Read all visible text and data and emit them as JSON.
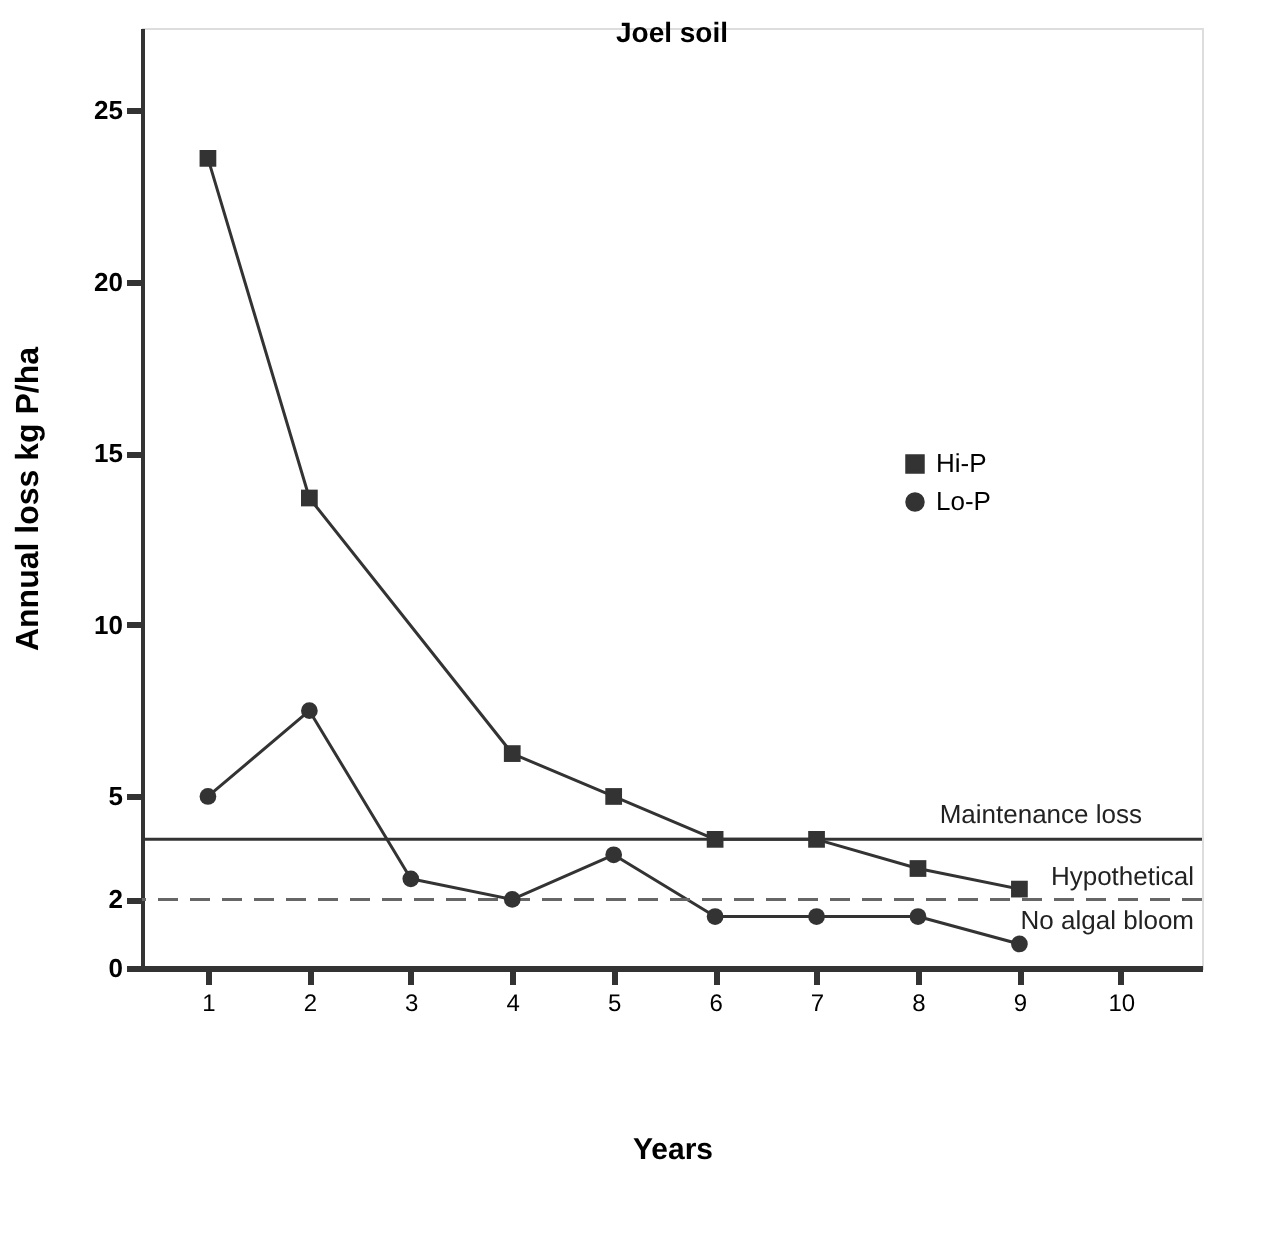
{
  "chart_data": {
    "type": "line",
    "title": "Joel soil",
    "xlabel": "Years",
    "ylabel": "Annual loss kg P/ha",
    "x": [
      1,
      2,
      3,
      4,
      5,
      6,
      7,
      8,
      9
    ],
    "series": [
      {
        "name": "Hi-P",
        "color": "#333333",
        "marker": "square",
        "values": [
          23.6,
          13.7,
          null,
          6.25,
          5.0,
          3.75,
          3.75,
          2.9,
          2.3
        ]
      },
      {
        "name": "Lo-P",
        "color": "#333333",
        "marker": "circle",
        "values": [
          5.0,
          7.5,
          2.6,
          2.0,
          3.3,
          1.5,
          1.5,
          1.5,
          0.7
        ]
      }
    ],
    "xlim": [
      0.35,
      10.8
    ],
    "xticks": [
      1,
      2,
      3,
      4,
      5,
      6,
      7,
      8,
      9,
      10
    ],
    "ylim": [
      0,
      27.4
    ],
    "yticks": [
      0,
      2,
      5,
      10,
      15,
      20,
      25
    ],
    "ref_lines": [
      {
        "axis": "y",
        "value": 3.75,
        "label": "Maintenance loss",
        "color": "#333333",
        "line_style": "solid"
      },
      {
        "axis": "y",
        "value": 2,
        "label": "Hypothetical\nNo algal bloom",
        "color": "#666666",
        "line_style": "dashed"
      }
    ],
    "grid": false,
    "legend": "right",
    "line_style": "solid"
  }
}
